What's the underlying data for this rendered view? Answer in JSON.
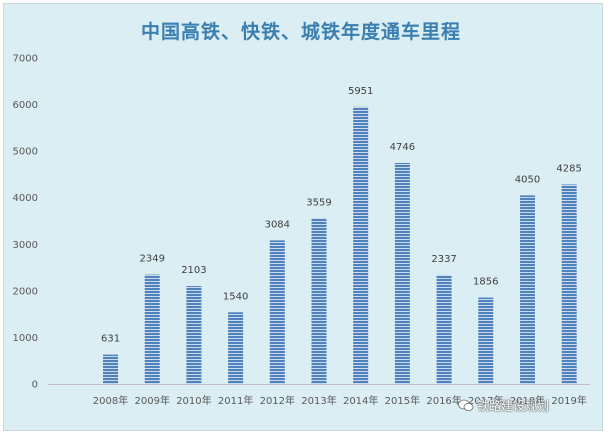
{
  "chart_data": {
    "type": "bar",
    "title": "中国高铁、快铁、城铁年度通车里程",
    "categories": [
      "",
      "2008年",
      "2009年",
      "2010年",
      "2011年",
      "2012年",
      "2013年",
      "2014年",
      "2015年",
      "2016年",
      "2017年",
      "2018年",
      "2019年"
    ],
    "values": [
      null,
      631,
      2349,
      2103,
      1540,
      3084,
      3559,
      5951,
      4746,
      2337,
      1856,
      4050,
      4285
    ],
    "ylim": [
      0,
      7000
    ],
    "yticks": [
      0,
      1000,
      2000,
      3000,
      4000,
      5000,
      6000,
      7000
    ],
    "xlabel": "",
    "ylabel": "",
    "grid": false,
    "bar_color": "#4f81bd"
  },
  "watermark": {
    "text": "铁路建设规划",
    "icon": "wechat-icon"
  }
}
